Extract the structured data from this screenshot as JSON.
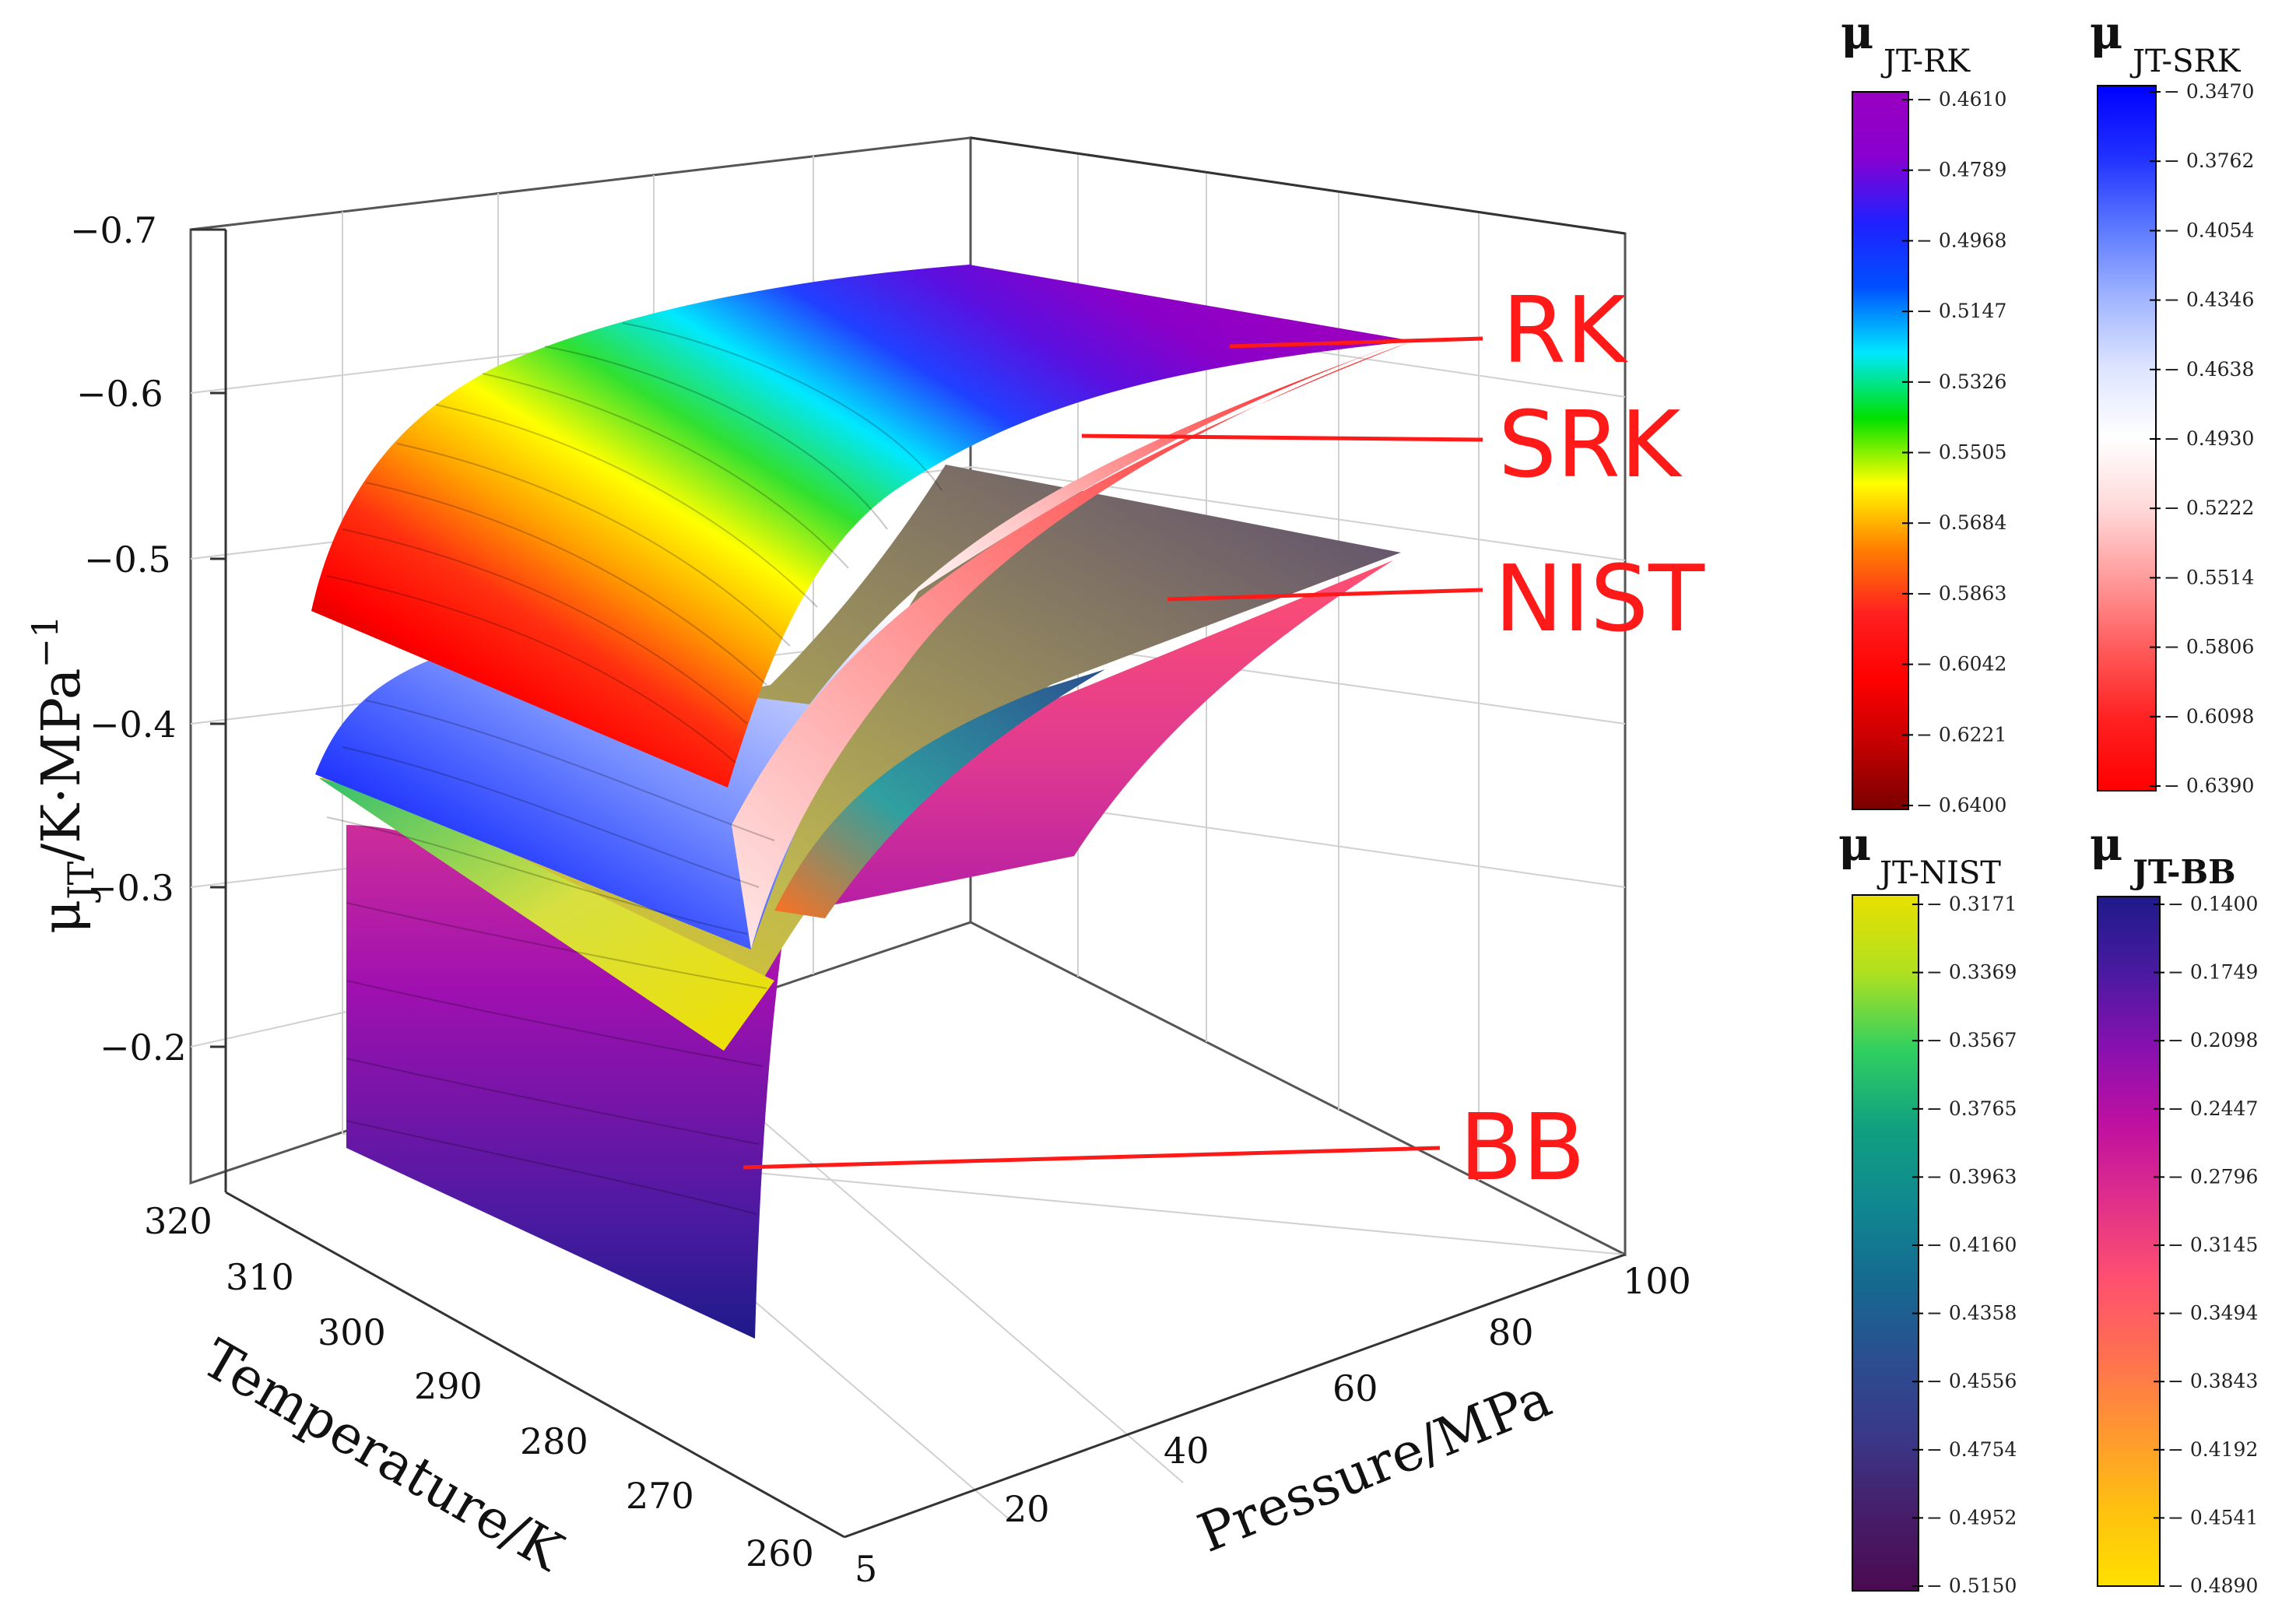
{
  "chart_data": {
    "type": "surface3d",
    "xlabel": "Pressure/MPa",
    "ylabel": "Temperature/K",
    "zlabel": {
      "base": "μ",
      "sub": "JT",
      "unit": "/K·MPa",
      "sup": "−1"
    },
    "x_ticks": [
      "5",
      "20",
      "40",
      "60",
      "80",
      "100"
    ],
    "y_ticks": [
      "320",
      "310",
      "300",
      "290",
      "280",
      "270",
      "260"
    ],
    "z_ticks": [
      "−0.7",
      "−0.6",
      "−0.5",
      "−0.4",
      "−0.3",
      "−0.2"
    ],
    "x_range": [
      5,
      100
    ],
    "y_range": [
      260,
      320
    ],
    "z_range": [
      -0.1,
      -0.7
    ],
    "series": [
      {
        "name": "RK",
        "label": "RK",
        "z_min": -0.461,
        "z_max": -0.64
      },
      {
        "name": "SRK",
        "label": "SRK",
        "z_min": -0.347,
        "z_max": -0.639
      },
      {
        "name": "NIST",
        "label": "NIST",
        "z_min": -0.3171,
        "z_max": -0.515
      },
      {
        "name": "BB",
        "label": "BB",
        "z_min": -0.14,
        "z_max": -0.489
      }
    ],
    "colorbars": [
      {
        "id": "rk",
        "mu": "μ",
        "sub": "JT-RK",
        "ticks": [
          "− 0.4610",
          "− 0.4789",
          "− 0.4968",
          "− 0.5147",
          "− 0.5326",
          "− 0.5505",
          "− 0.5684",
          "− 0.5863",
          "− 0.6042",
          "− 0.6221",
          "− 0.6400"
        ]
      },
      {
        "id": "srk",
        "mu": "μ",
        "sub": "JT-SRK",
        "ticks": [
          "− 0.3470",
          "− 0.3762",
          "− 0.4054",
          "− 0.4346",
          "− 0.4638",
          "− 0.4930",
          "− 0.5222",
          "− 0.5514",
          "− 0.5806",
          "− 0.6098",
          "− 0.6390"
        ]
      },
      {
        "id": "nist",
        "mu": "μ",
        "sub": "JT-NIST",
        "ticks": [
          "− 0.3171",
          "− 0.3369",
          "− 0.3567",
          "− 0.3765",
          "− 0.3963",
          "− 0.4160",
          "− 0.4358",
          "− 0.4556",
          "− 0.4754",
          "− 0.4952",
          "− 0.5150"
        ]
      },
      {
        "id": "bb",
        "mu": "μ",
        "sub": "JT-BB",
        "ticks": [
          "− 0.1400",
          "− 0.1749",
          "− 0.2098",
          "− 0.2447",
          "− 0.2796",
          "− 0.3145",
          "− 0.3494",
          "− 0.3843",
          "− 0.4192",
          "− 0.4541",
          "− 0.4890"
        ]
      }
    ]
  },
  "colors": {
    "rk": [
      "#7a0000",
      "#c40000",
      "#ff0000",
      "#ff2020",
      "#ff8000",
      "#ffff00",
      "#00e000",
      "#00e8ff",
      "#0050ff",
      "#2020ff",
      "#8800d0",
      "#9a00c0"
    ],
    "srk": [
      "#0000ff",
      "#2030ff",
      "#5a78ff",
      "#a0b4ff",
      "#dde4ff",
      "#ffffff",
      "#ffd8d8",
      "#ff9a9a",
      "#ff5a5a",
      "#ff2020",
      "#ff0000"
    ],
    "nist": [
      "#e8e000",
      "#b0e020",
      "#30d060",
      "#10a080",
      "#108890",
      "#156a90",
      "#2a4e90",
      "#3a3888",
      "#461e6a",
      "#4a0a50"
    ],
    "bb": [
      "#1e1a8a",
      "#4a1aa0",
      "#8a10b0",
      "#c010a0",
      "#e0308a",
      "#ff5070",
      "#ff7050",
      "#ff9830",
      "#ffc010",
      "#ffe000"
    ],
    "label": "#ff1a1a",
    "grid": "#d0d0d0"
  }
}
